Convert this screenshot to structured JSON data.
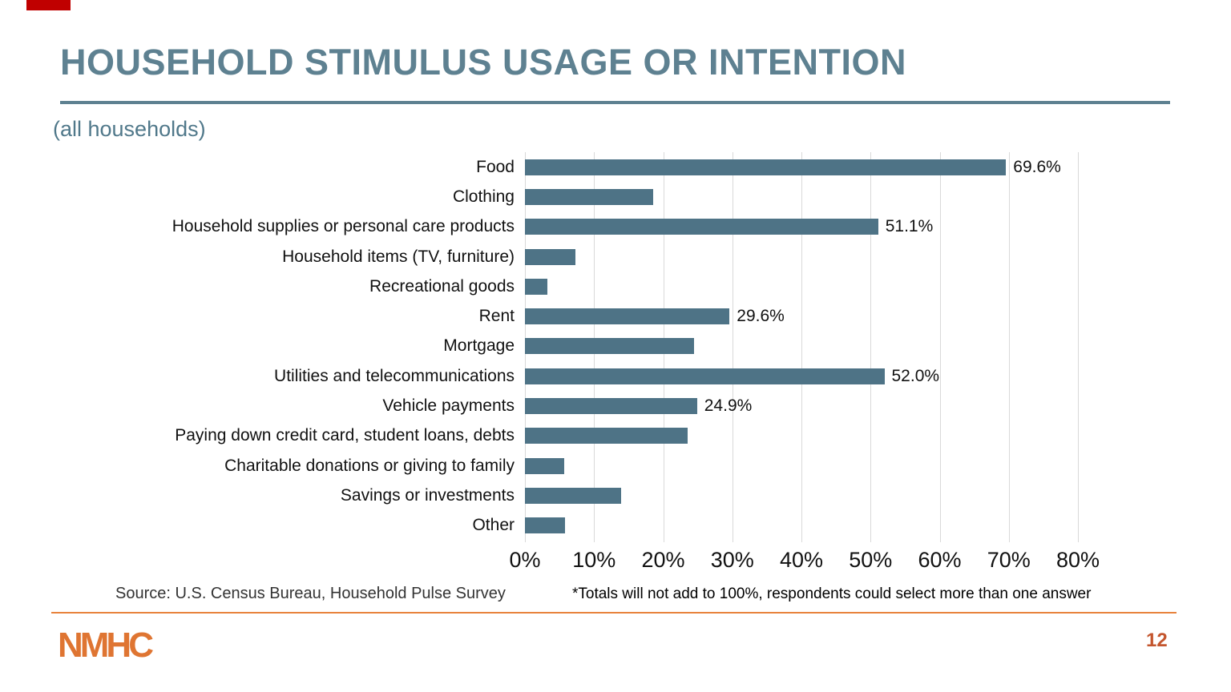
{
  "slide": {
    "title": "HOUSEHOLD STIMULUS USAGE OR INTENTION",
    "subtitle": "(all households)",
    "source": "Source: U.S. Census Bureau, Household Pulse Survey",
    "footnote": "*Totals will not add to 100%, respondents could select more than one answer",
    "logo": "NMHC",
    "page_number": "12",
    "colors": {
      "title_teal": "#5E8191",
      "bar_slate": "#4E7386",
      "gridline_gray": "#D9D9D9",
      "footer_orange": "#E8823C",
      "logo_orange": "#DF7532",
      "page_number_orange": "#C4562E",
      "red_mark": "#C00000"
    }
  },
  "chart_data": {
    "type": "bar",
    "orientation": "horizontal",
    "title": "HOUSEHOLD STIMULUS USAGE OR INTENTION",
    "subtitle": "(all households)",
    "categories": [
      "Food",
      "Clothing",
      "Household supplies or personal care products",
      "Household items (TV, furniture)",
      "Recreational goods",
      "Rent",
      "Mortgage",
      "Utilities and telecommunications",
      "Vehicle payments",
      "Paying down credit card, student loans, debts",
      "Charitable donations or giving to family",
      "Savings or investments",
      "Other"
    ],
    "values": [
      69.6,
      18.6,
      51.1,
      7.3,
      3.2,
      29.6,
      24.5,
      52.0,
      24.9,
      23.5,
      5.7,
      13.9,
      5.8
    ],
    "data_labels": [
      "69.6%",
      "",
      "51.1%",
      "",
      "",
      "29.6%",
      "",
      "52.0%",
      "24.9%",
      "",
      "",
      "",
      ""
    ],
    "x_ticks": [
      "0%",
      "10%",
      "20%",
      "30%",
      "40%",
      "50%",
      "60%",
      "70%",
      "80%"
    ],
    "xlim": [
      0,
      80
    ],
    "xlabel": "",
    "ylabel": "",
    "grid": "vertical",
    "legend": "none",
    "bar_color": "#4E7386"
  }
}
